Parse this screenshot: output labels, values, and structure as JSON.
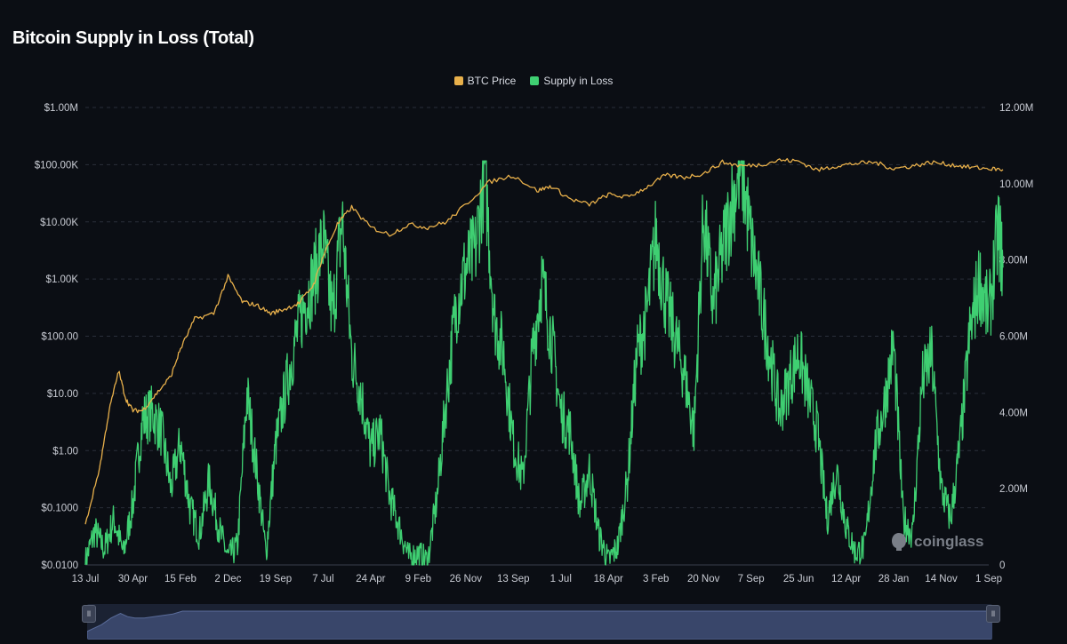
{
  "title": "Bitcoin Supply in Loss (Total)",
  "legend": [
    {
      "label": "BTC Price",
      "color": "#e8b04b"
    },
    {
      "label": "Supply in Loss",
      "color": "#3fcf72"
    }
  ],
  "watermark": "coinglass",
  "chart_data": {
    "type": "line",
    "x_tick_labels": [
      "13 Jul",
      "30 Apr",
      "15 Feb",
      "2 Dec",
      "19 Sep",
      "7 Jul",
      "24 Apr",
      "9 Feb",
      "26 Nov",
      "13 Sep",
      "1 Jul",
      "18 Apr",
      "3 Feb",
      "20 Nov",
      "7 Sep",
      "25 Jun",
      "12 Apr",
      "28 Jan",
      "14 Nov",
      "1 Sep"
    ],
    "left_axis": {
      "scale": "log",
      "tick_labels": [
        "$1.00M",
        "$100.00K",
        "$10.00K",
        "$1.00K",
        "$100.00",
        "$10.00",
        "$1.00",
        "$0.1000",
        "$0.0100"
      ],
      "range": [
        0.01,
        1000000
      ]
    },
    "right_axis": {
      "scale": "linear",
      "tick_labels": [
        "12.00M",
        "10.00M",
        "8.00M",
        "6.00M",
        "4.00M",
        "2.00M",
        "0"
      ],
      "range": [
        0,
        12000000
      ]
    },
    "grid": true,
    "legend_position": "top-center",
    "series": [
      {
        "name": "BTC Price",
        "axis": "left",
        "color": "#e8b04b",
        "x_index": [
          0,
          0.3,
          0.5,
          0.7,
          0.85,
          1.0,
          1.2,
          1.5,
          1.8,
          2.0,
          2.3,
          2.7,
          3.0,
          3.3,
          3.6,
          3.9,
          4.2,
          4.5,
          4.8,
          5.0,
          5.3,
          5.6,
          6.0,
          6.4,
          6.8,
          7.2,
          7.6,
          8.0,
          8.5,
          9.0,
          9.5,
          9.8,
          10.2,
          10.6,
          11.0,
          11.4,
          11.8,
          12.2,
          12.6,
          13.0,
          13.4,
          13.8,
          14.2,
          14.6,
          15.0,
          15.4,
          15.8,
          16.2,
          16.6,
          17.0,
          17.4,
          17.8,
          18.2,
          18.6,
          19.0,
          19.3
        ],
        "values": [
          0.05,
          0.5,
          5,
          25,
          8,
          5,
          5,
          10,
          20,
          60,
          200,
          250,
          1100,
          400,
          350,
          250,
          300,
          380,
          800,
          2500,
          9000,
          18000,
          8000,
          6000,
          9000,
          8000,
          10000,
          20000,
          50000,
          65000,
          35000,
          42000,
          25000,
          20000,
          30000,
          27000,
          40000,
          65000,
          60000,
          70000,
          110000,
          95000,
          100000,
          120000,
          115000,
          80000,
          95000,
          105000,
          110000,
          85000,
          95000,
          110000,
          100000,
          90000,
          85000,
          82000
        ]
      },
      {
        "name": "Supply in Loss",
        "axis": "right",
        "color": "#3fcf72",
        "x_index": [
          0,
          0.2,
          0.4,
          0.6,
          0.8,
          1.0,
          1.2,
          1.4,
          1.6,
          1.8,
          2.0,
          2.2,
          2.4,
          2.6,
          2.8,
          3.0,
          3.2,
          3.4,
          3.6,
          3.8,
          4.0,
          4.2,
          4.4,
          4.6,
          4.8,
          5.0,
          5.2,
          5.4,
          5.6,
          5.8,
          6.0,
          6.2,
          6.4,
          6.6,
          6.8,
          7.0,
          7.2,
          7.4,
          7.6,
          7.8,
          8.0,
          8.2,
          8.4,
          8.6,
          8.8,
          9.0,
          9.2,
          9.4,
          9.6,
          9.8,
          10.0,
          10.2,
          10.4,
          10.6,
          10.8,
          11.0,
          11.2,
          11.4,
          11.6,
          11.8,
          12.0,
          12.2,
          12.4,
          12.6,
          12.8,
          13.0,
          13.2,
          13.4,
          13.6,
          13.8,
          14.0,
          14.2,
          14.4,
          14.6,
          14.8,
          15.0,
          15.2,
          15.4,
          15.6,
          15.8,
          16.0,
          16.2,
          16.4,
          16.6,
          16.8,
          17.0,
          17.2,
          17.4,
          17.6,
          17.8,
          18.0,
          18.2,
          18.4,
          18.6,
          18.8,
          19.0,
          19.2,
          19.3
        ],
        "values": [
          0.1,
          0.9,
          0.4,
          1.2,
          0.3,
          1.6,
          3.8,
          4.0,
          3.5,
          2.0,
          3.2,
          1.5,
          0.8,
          2.2,
          1.0,
          0.2,
          0.5,
          4.5,
          2.5,
          0.3,
          3.1,
          4.5,
          5.8,
          6.8,
          7.5,
          8.5,
          6.5,
          9.1,
          5.5,
          4.5,
          3.0,
          3.5,
          1.8,
          1.0,
          0.2,
          0.3,
          0.1,
          1.8,
          4.5,
          6.8,
          7.8,
          8.2,
          10.4,
          6.5,
          5.5,
          3.2,
          2.2,
          5.5,
          7.5,
          6.0,
          4.0,
          3.5,
          1.5,
          2.5,
          0.8,
          0.1,
          0.5,
          2.2,
          5.5,
          6.5,
          8.6,
          7.0,
          6.0,
          5.0,
          3.5,
          9.2,
          6.8,
          8.2,
          9.5,
          10.5,
          8.5,
          7.0,
          5.5,
          4.0,
          4.8,
          5.6,
          4.5,
          3.5,
          1.2,
          2.5,
          1.0,
          0.3,
          0.5,
          3.0,
          4.2,
          5.8,
          1.2,
          0.8,
          4.8,
          5.5,
          2.0,
          1.2,
          3.2,
          6.0,
          7.5,
          6.5,
          8.8,
          7.8
        ]
      }
    ]
  }
}
